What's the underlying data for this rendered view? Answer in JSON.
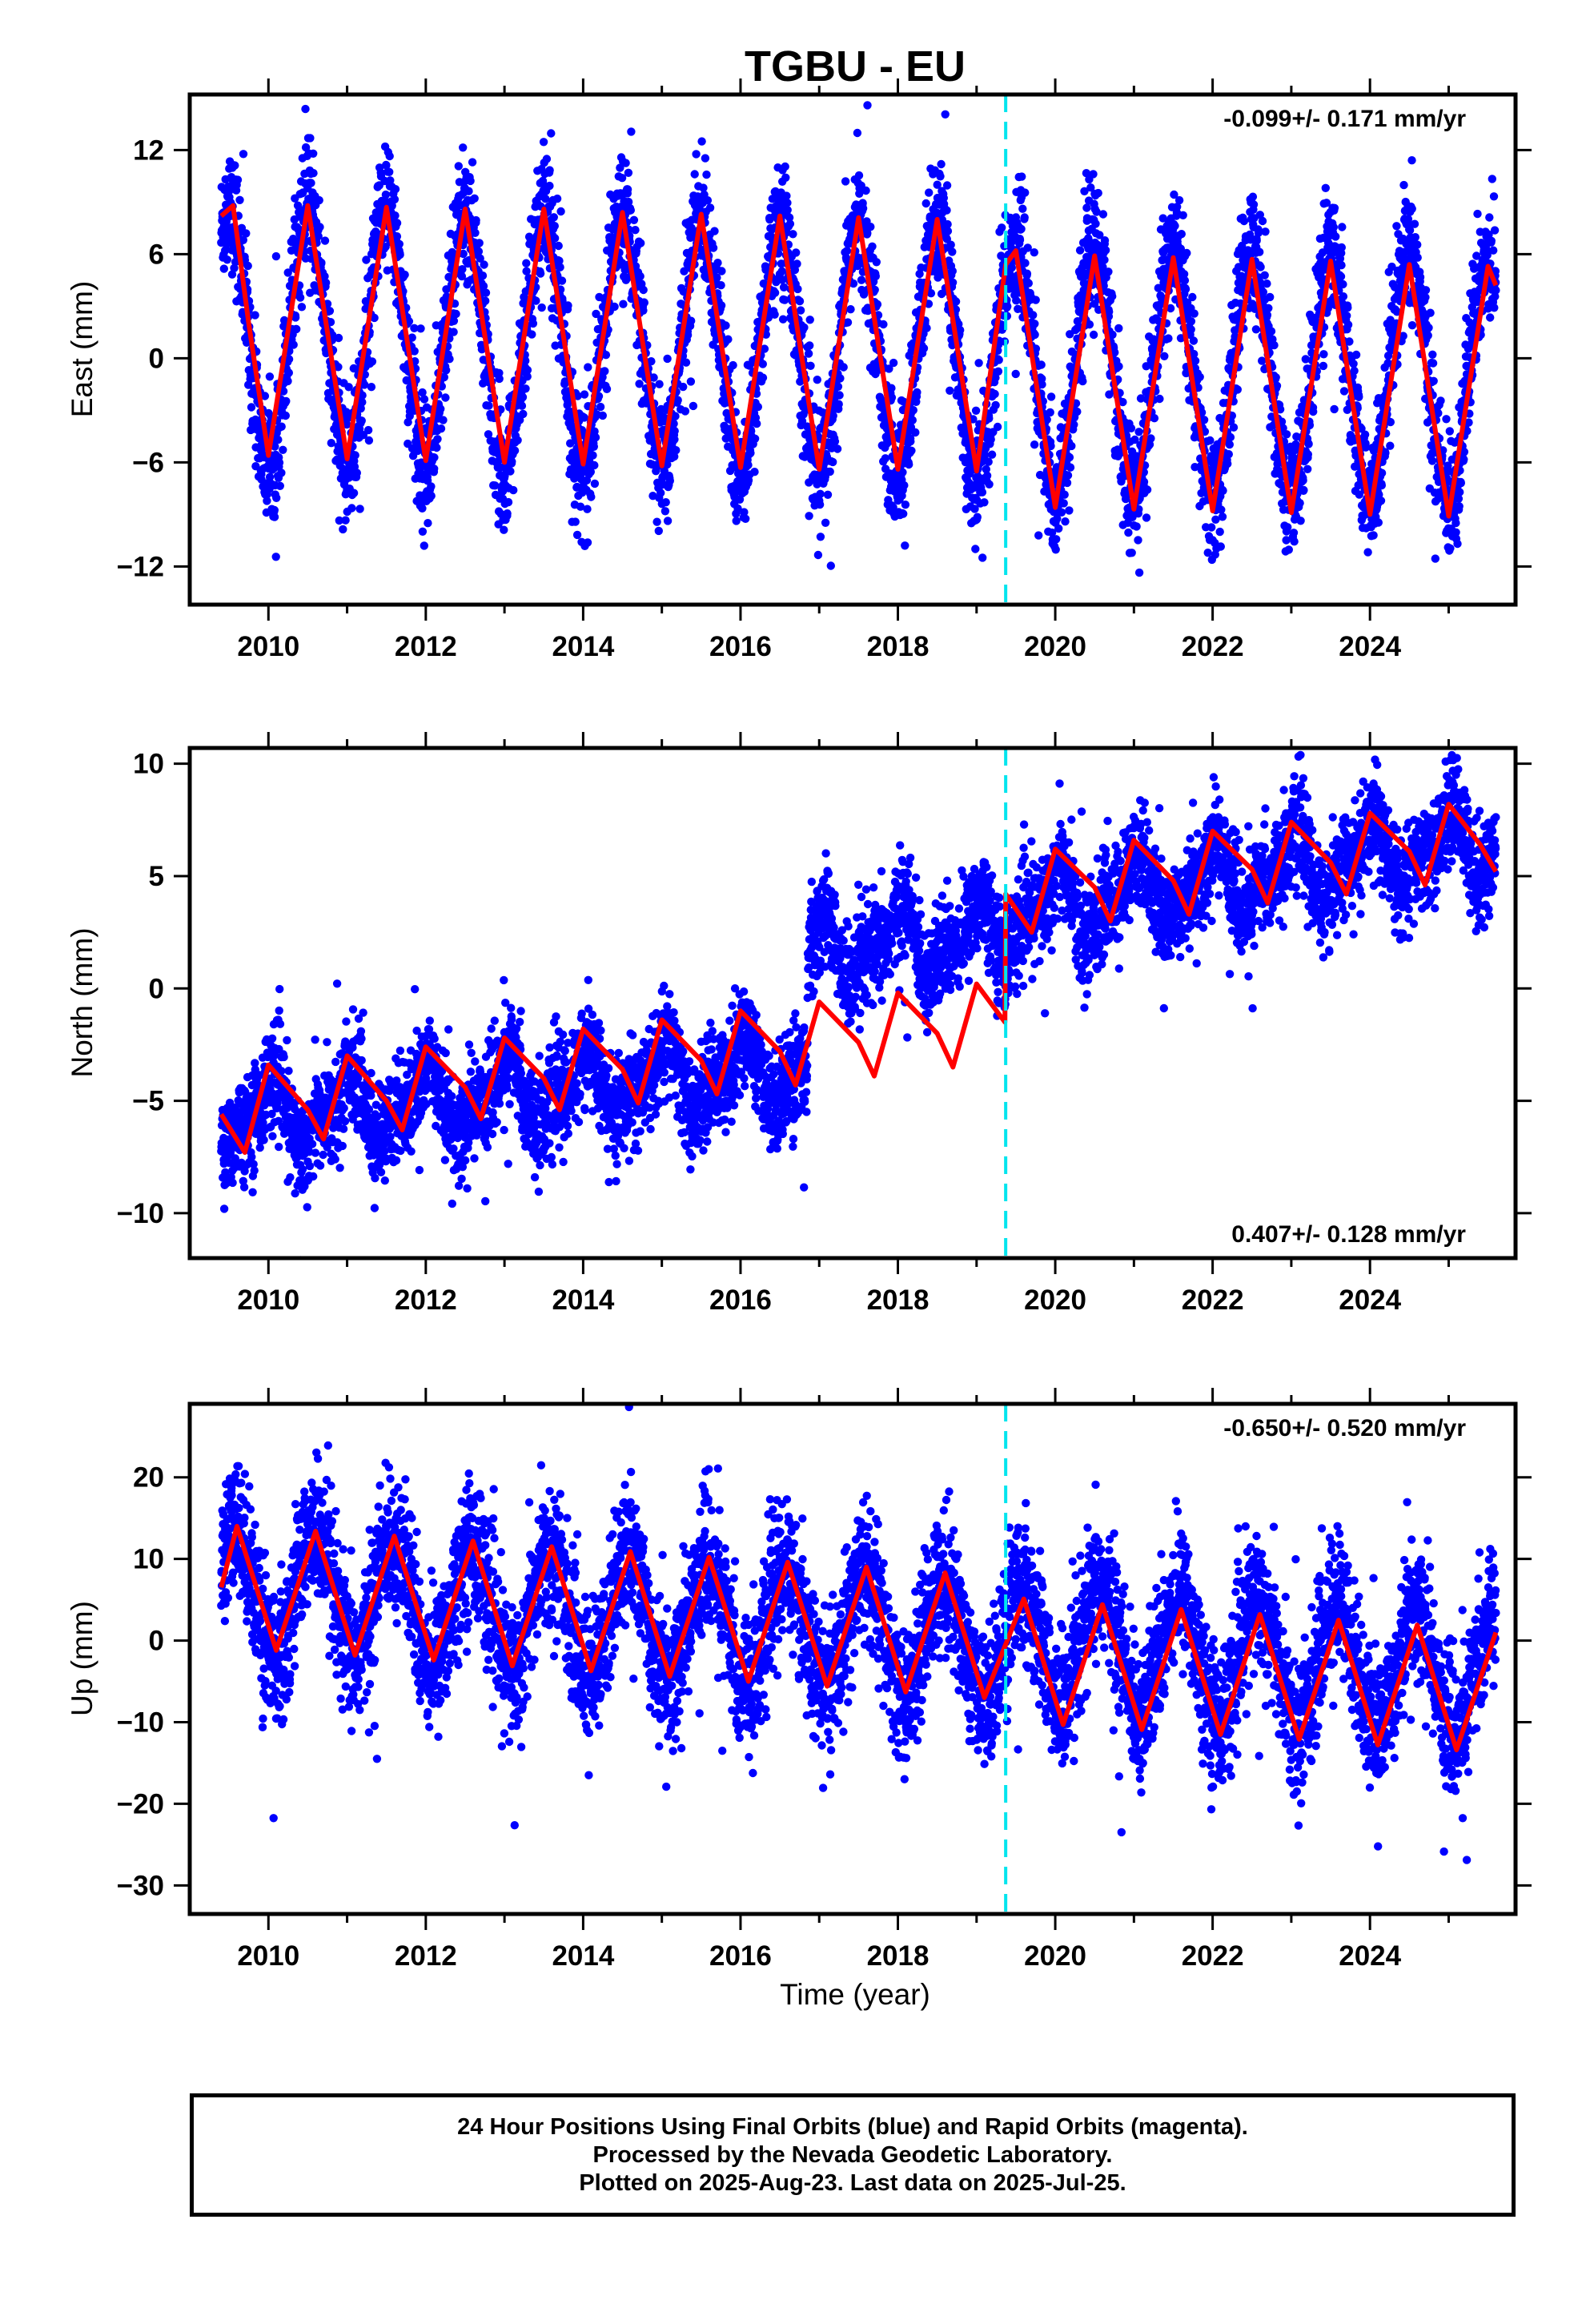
{
  "title": "TGBU - EU",
  "xlabel": "Time (year)",
  "footer": [
    "24 Hour Positions Using Final Orbits (blue) and Rapid Orbits (magenta).",
    "Processed by the Nevada Geodetic Laboratory.",
    "Plotted on 2025-Aug-23. Last data on 2025-Jul-25."
  ],
  "colors": {
    "data": "#0000ff",
    "model": "#ff0000",
    "event_line": "#00e5ee",
    "frame": "#000000"
  },
  "chart_data": [
    {
      "type": "scatter",
      "ylabel": "East (mm)",
      "rate_text": "-0.099+/- 0.171 mm/yr",
      "rate_position": "top-right",
      "xlim": [
        2009.0,
        2025.85
      ],
      "ylim": [
        -14.2,
        15.2
      ],
      "xticks": [
        2010,
        2012,
        2014,
        2016,
        2018,
        2020,
        2022,
        2024
      ],
      "xtick_labels": [
        "2010",
        "2012",
        "2014",
        "2016",
        "2018",
        "2020",
        "2022",
        "2024"
      ],
      "yticks": [
        -12,
        -6,
        0,
        6,
        12
      ],
      "ytick_labels": [
        "−12",
        "−6",
        "0",
        "6",
        "12"
      ],
      "event_line_x": 2019.37,
      "x_range": [
        2009.4,
        2025.6
      ],
      "series": [
        {
          "role": "daily positions",
          "kind": "points",
          "color": "#0000ff",
          "approx": {
            "offset": 1.4,
            "trend": -0.099,
            "annual_amplitude": [
              7.2,
              7.2,
              7.3,
              7.3,
              7.3,
              7.2,
              7.2,
              7.2,
              7.2,
              7.2,
              7.1,
              7.1,
              7.1,
              7.1,
              7.0,
              7.0,
              7.0
            ],
            "peak_phase": 0.5,
            "offset_step": {
              "x": 2019.37,
              "dy": -1.0
            },
            "scatter_sd": 1.8
          }
        },
        {
          "role": "model fit",
          "kind": "line",
          "color": "#ff0000",
          "points": [
            [
              2009.4,
              8.2
            ],
            [
              2009.55,
              8.8
            ],
            [
              2009.75,
              2.0
            ],
            [
              2010.0,
              -5.6
            ],
            [
              2010.5,
              8.8
            ],
            [
              2011.0,
              -5.8
            ],
            [
              2011.5,
              8.7
            ],
            [
              2012.0,
              -5.9
            ],
            [
              2012.5,
              8.6
            ],
            [
              2013.0,
              -6.0
            ],
            [
              2013.5,
              8.6
            ],
            [
              2014.0,
              -6.1
            ],
            [
              2014.5,
              8.4
            ],
            [
              2015.0,
              -6.2
            ],
            [
              2015.5,
              8.3
            ],
            [
              2016.0,
              -6.3
            ],
            [
              2016.5,
              8.2
            ],
            [
              2017.0,
              -6.4
            ],
            [
              2017.5,
              8.1
            ],
            [
              2018.0,
              -6.4
            ],
            [
              2018.5,
              8.0
            ],
            [
              2019.0,
              -6.5
            ],
            [
              2019.37,
              5.4
            ],
            [
              2019.5,
              6.2
            ],
            [
              2020.0,
              -8.6
            ],
            [
              2020.5,
              5.9
            ],
            [
              2021.0,
              -8.7
            ],
            [
              2021.5,
              5.8
            ],
            [
              2022.0,
              -8.8
            ],
            [
              2022.5,
              5.7
            ],
            [
              2023.0,
              -8.9
            ],
            [
              2023.5,
              5.6
            ],
            [
              2024.0,
              -9.0
            ],
            [
              2024.5,
              5.4
            ],
            [
              2025.0,
              -9.1
            ],
            [
              2025.5,
              5.3
            ],
            [
              2025.6,
              4.2
            ]
          ]
        }
      ]
    },
    {
      "type": "scatter",
      "ylabel": "North (mm)",
      "rate_text": "0.407+/- 0.128 mm/yr",
      "rate_position": "bottom-right",
      "xlim": [
        2009.0,
        2025.85
      ],
      "ylim": [
        -12.0,
        10.7
      ],
      "xticks": [
        2010,
        2012,
        2014,
        2016,
        2018,
        2020,
        2022,
        2024
      ],
      "xtick_labels": [
        "2010",
        "2012",
        "2014",
        "2016",
        "2018",
        "2020",
        "2022",
        "2024"
      ],
      "yticks": [
        -10,
        -5,
        0,
        5,
        10
      ],
      "ytick_labels": [
        "−10",
        "−5",
        "0",
        "5",
        "10"
      ],
      "event_line_x": 2019.37,
      "x_range": [
        2009.4,
        2025.6
      ],
      "series": [
        {
          "role": "daily positions",
          "kind": "points",
          "color": "#0000ff",
          "approx": {
            "segments": [
              {
                "from": 2009.4,
                "to": 2016.85,
                "start": -5.8,
                "end": -3.5
              },
              {
                "from": 2016.85,
                "to": 2019.37,
                "start": 1.5,
                "end": 2.5
              },
              {
                "from": 2019.37,
                "to": 2025.6,
                "start": 3.4,
                "end": 6.6
              }
            ],
            "annual_amplitude": 1.3,
            "scatter_sd": 1.1
          }
        },
        {
          "role": "model fit",
          "kind": "line",
          "color": "#ff0000",
          "points": [
            [
              2009.4,
              -5.6
            ],
            [
              2009.7,
              -7.3
            ],
            [
              2010.0,
              -3.4
            ],
            [
              2010.5,
              -5.4
            ],
            [
              2010.7,
              -6.7
            ],
            [
              2011.0,
              -3.0
            ],
            [
              2011.5,
              -5.0
            ],
            [
              2011.7,
              -6.3
            ],
            [
              2012.0,
              -2.6
            ],
            [
              2012.5,
              -4.4
            ],
            [
              2012.7,
              -5.8
            ],
            [
              2013.0,
              -2.2
            ],
            [
              2013.5,
              -4.0
            ],
            [
              2013.7,
              -5.4
            ],
            [
              2014.0,
              -1.8
            ],
            [
              2014.5,
              -3.6
            ],
            [
              2014.7,
              -5.1
            ],
            [
              2015.0,
              -1.4
            ],
            [
              2015.5,
              -3.2
            ],
            [
              2015.7,
              -4.7
            ],
            [
              2016.0,
              -1.0
            ],
            [
              2016.5,
              -2.8
            ],
            [
              2016.7,
              -4.3
            ],
            [
              2017.0,
              -0.6
            ],
            [
              2017.5,
              -2.4
            ],
            [
              2017.7,
              -3.9
            ],
            [
              2018.0,
              -0.2
            ],
            [
              2018.5,
              -2.0
            ],
            [
              2018.7,
              -3.5
            ],
            [
              2019.0,
              0.2
            ],
            [
              2019.36,
              -1.5
            ],
            [
              2019.37,
              4.2
            ],
            [
              2019.7,
              2.5
            ],
            [
              2020.0,
              6.2
            ],
            [
              2020.5,
              4.5
            ],
            [
              2020.7,
              3.0
            ],
            [
              2021.0,
              6.6
            ],
            [
              2021.5,
              4.8
            ],
            [
              2021.7,
              3.3
            ],
            [
              2022.0,
              7.0
            ],
            [
              2022.5,
              5.3
            ],
            [
              2022.7,
              3.8
            ],
            [
              2023.0,
              7.4
            ],
            [
              2023.5,
              5.6
            ],
            [
              2023.7,
              4.2
            ],
            [
              2024.0,
              7.8
            ],
            [
              2024.5,
              6.1
            ],
            [
              2024.7,
              4.6
            ],
            [
              2025.0,
              8.2
            ],
            [
              2025.4,
              6.4
            ],
            [
              2025.6,
              5.2
            ]
          ]
        }
      ]
    },
    {
      "type": "scatter",
      "ylabel": "Up (mm)",
      "rate_text": "-0.650+/- 0.520 mm/yr",
      "rate_position": "top-right",
      "xlim": [
        2009.0,
        2025.85
      ],
      "ylim": [
        -33.5,
        29.0
      ],
      "xticks": [
        2010,
        2012,
        2014,
        2016,
        2018,
        2020,
        2022,
        2024
      ],
      "xtick_labels": [
        "2010",
        "2012",
        "2014",
        "2016",
        "2018",
        "2020",
        "2022",
        "2024"
      ],
      "yticks": [
        -30,
        -20,
        -10,
        0,
        10,
        20
      ],
      "ytick_labels": [
        "−30",
        "−20",
        "−10",
        "0",
        "10",
        "20"
      ],
      "event_line_x": 2019.37,
      "x_range": [
        2009.4,
        2025.6
      ],
      "series": [
        {
          "role": "daily positions",
          "kind": "points",
          "color": "#0000ff",
          "approx": {
            "offset": 6.3,
            "trend": -0.65,
            "annual_amplitude": 7.5,
            "peak_phase": 0.58,
            "scatter_sd": 4.2
          }
        },
        {
          "role": "model fit",
          "kind": "line",
          "color": "#ff0000",
          "points": [
            [
              2009.4,
              6.5
            ],
            [
              2009.6,
              14.0
            ],
            [
              2010.1,
              -1.2
            ],
            [
              2010.6,
              13.4
            ],
            [
              2011.1,
              -1.8
            ],
            [
              2011.6,
              12.8
            ],
            [
              2012.1,
              -2.4
            ],
            [
              2012.6,
              12.2
            ],
            [
              2013.1,
              -3.1
            ],
            [
              2013.6,
              11.5
            ],
            [
              2014.1,
              -3.7
            ],
            [
              2014.6,
              10.9
            ],
            [
              2015.1,
              -4.4
            ],
            [
              2015.6,
              10.2
            ],
            [
              2016.1,
              -5.0
            ],
            [
              2016.6,
              9.6
            ],
            [
              2017.1,
              -5.6
            ],
            [
              2017.6,
              9.0
            ],
            [
              2018.1,
              -6.3
            ],
            [
              2018.6,
              8.3
            ],
            [
              2019.1,
              -7.0
            ],
            [
              2019.6,
              5.1
            ],
            [
              2020.1,
              -10.3
            ],
            [
              2020.6,
              4.4
            ],
            [
              2021.1,
              -10.9
            ],
            [
              2021.6,
              3.8
            ],
            [
              2022.1,
              -11.5
            ],
            [
              2022.6,
              3.2
            ],
            [
              2023.1,
              -12.1
            ],
            [
              2023.6,
              2.5
            ],
            [
              2024.1,
              -12.8
            ],
            [
              2024.6,
              1.9
            ],
            [
              2025.1,
              -13.4
            ],
            [
              2025.6,
              1.0
            ]
          ]
        }
      ]
    }
  ]
}
